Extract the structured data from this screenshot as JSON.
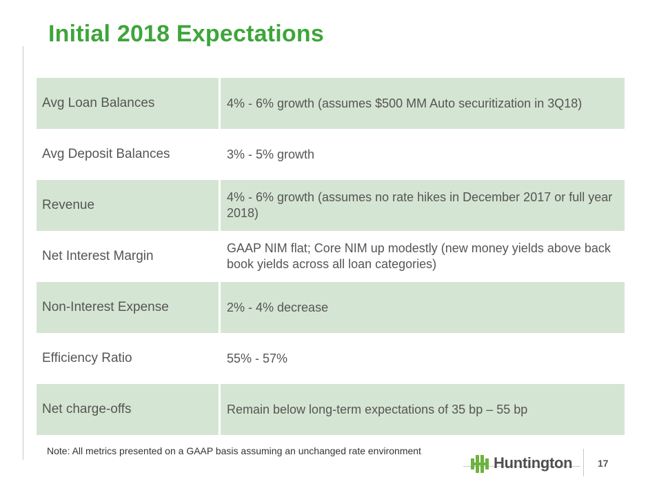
{
  "slide": {
    "title": "Initial 2018 Expectations",
    "page_number": "17",
    "note": "Note: All metrics presented on a GAAP basis assuming an unchanged rate environment"
  },
  "rows": [
    {
      "label": "Avg Loan Balances",
      "value": "4% - 6% growth (assumes $500 MM Auto securitization in 3Q18)"
    },
    {
      "label": "Avg Deposit Balances",
      "value": "3% - 5% growth"
    },
    {
      "label": "Revenue",
      "value": "4% - 6% growth (assumes no rate hikes in December 2017 or full year 2018)"
    },
    {
      "label": "Net Interest Margin",
      "value": "GAAP NIM flat; Core NIM up modestly (new money yields above back book yields across all loan categories)"
    },
    {
      "label": "Non-Interest Expense",
      "value": "2% - 4% decrease"
    },
    {
      "label": "Efficiency Ratio",
      "value": "55% - 57%"
    },
    {
      "label": "Net charge-offs",
      "value": "Remain below long-term expectations of 35 bp – 55 bp"
    }
  ],
  "logo": {
    "text": "Huntington",
    "brand_color": "#6cb33f"
  },
  "colors": {
    "title": "#3ea53a",
    "row_shade": "#d5e5d3",
    "text": "#555555"
  }
}
